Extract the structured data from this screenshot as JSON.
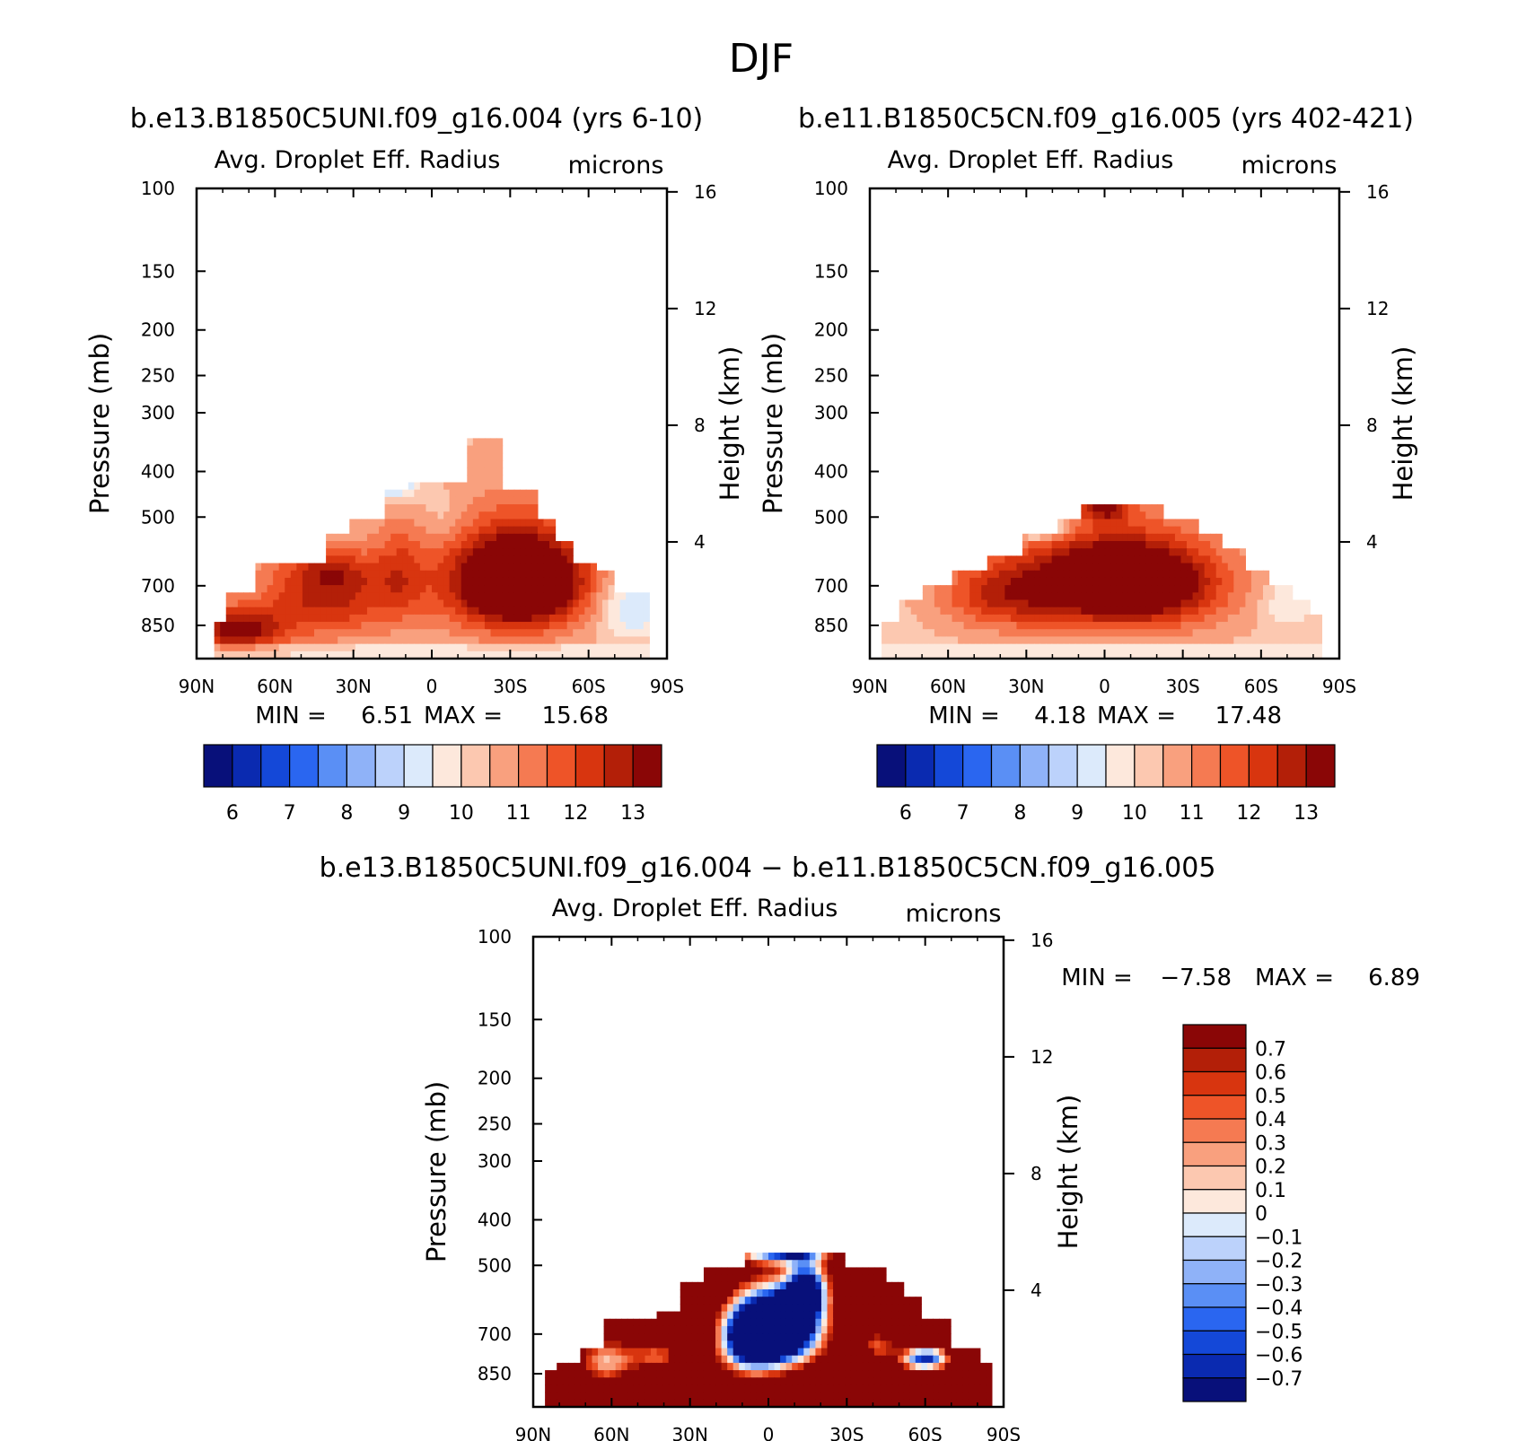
{
  "figure_title": "DJF",
  "colors": {
    "seq": [
      "#08107a",
      "#0a2ab0",
      "#1448d8",
      "#2a66f0",
      "#5a8ff5",
      "#8fb2f8",
      "#bcd2fb",
      "#dceafb",
      "#fde8dc",
      "#fcc8b0",
      "#f9a07e",
      "#f57a52",
      "#ee5428",
      "#d8350f",
      "#b31f08",
      "#8a0606"
    ],
    "diff": [
      "#8a0606",
      "#b31f08",
      "#d8350f",
      "#ee5428",
      "#f57a52",
      "#f9a07e",
      "#fcc8b0",
      "#fde8dc",
      "#dceafb",
      "#bcd2fb",
      "#8fb2f8",
      "#5a8ff5",
      "#2a66f0",
      "#1448d8",
      "#0a2ab0",
      "#08107a"
    ]
  },
  "panels": {
    "left": {
      "title": "b.e13.B1850C5UNI.f09_g16.004 (yrs 6-10)",
      "variable": "Avg. Droplet Eff. Radius",
      "units": "microns",
      "stats": {
        "min_label": "MIN =",
        "min": "6.51",
        "max_label": "MAX =",
        "max": "15.68"
      }
    },
    "right": {
      "title": "b.e11.B1850C5CN.f09_g16.005 (yrs 402-421)",
      "variable": "Avg. Droplet Eff. Radius",
      "units": "microns",
      "stats": {
        "min_label": "MIN =",
        "min": "4.18",
        "max_label": "MAX =",
        "max": "17.48"
      }
    },
    "diff": {
      "title": "b.e13.B1850C5UNI.f09_g16.004 − b.e11.B1850C5CN.f09_g16.005",
      "variable": "Avg. Droplet Eff. Radius",
      "units": "microns",
      "stats": {
        "min_label": "MIN =",
        "min": "−7.58",
        "max_label": "MAX =",
        "max": "6.89"
      }
    }
  },
  "chart_data": [
    {
      "type": "heatmap",
      "title": "b.e13.B1850C5UNI.f09_g16.004 (yrs 6-10)",
      "variable": "Avg. Droplet Eff. Radius",
      "units": "microns",
      "xlabel": "",
      "ylabel": "Pressure (mb)",
      "ylabel2": "Height (km)",
      "x_ticks": [
        "90N",
        "60N",
        "30N",
        "0",
        "30S",
        "60S",
        "90S"
      ],
      "x_values": [
        -90,
        -60,
        -30,
        0,
        30,
        60,
        90
      ],
      "xlim": [
        -90,
        90
      ],
      "y_ticks": [
        100,
        150,
        200,
        250,
        300,
        400,
        500,
        700,
        850
      ],
      "ylim": [
        100,
        1000
      ],
      "y2_ticks": [
        16,
        12,
        8,
        4
      ],
      "colorbar_labels": [
        "6",
        "7",
        "8",
        "9",
        "10",
        "11",
        "12",
        "13"
      ],
      "colorbar_levels": [
        5.5,
        6,
        6.5,
        7,
        7.5,
        8,
        8.5,
        9,
        9.5,
        10,
        10.5,
        11,
        11.5,
        12,
        12.5,
        13,
        13.5
      ],
      "background": 10.4,
      "top_profile": [
        [
          -83,
          850
        ],
        [
          -78,
          730
        ],
        [
          -68,
          620
        ],
        [
          -50,
          620
        ],
        [
          -40,
          550
        ],
        [
          -32,
          510
        ],
        [
          -18,
          440
        ],
        [
          -8,
          420
        ],
        [
          10,
          420
        ],
        [
          14,
          340
        ],
        [
          25,
          340
        ],
        [
          28,
          440
        ],
        [
          40,
          510
        ],
        [
          48,
          555
        ],
        [
          54,
          620
        ],
        [
          63,
          660
        ],
        [
          70,
          730
        ],
        [
          84,
          730
        ],
        [
          84,
          900
        ]
      ],
      "features": [
        {
          "lat": -75,
          "p": 870,
          "rx": 18,
          "ry": 90,
          "value": 3.0
        },
        {
          "lat": -40,
          "p": 740,
          "rx": 26,
          "ry": 150,
          "value": 2.3
        },
        {
          "lat": -38,
          "p": 650,
          "rx": 16,
          "ry": 60,
          "value": 1.0
        },
        {
          "lat": -12,
          "p": 650,
          "rx": 10,
          "ry": 160,
          "value": 1.2
        },
        {
          "lat": 32,
          "p": 680,
          "rx": 28,
          "ry": 180,
          "value": 4.2
        },
        {
          "lat": 35,
          "p": 700,
          "rx": 18,
          "ry": 110,
          "value": 1.6
        },
        {
          "lat": -15,
          "p": 420,
          "rx": 10,
          "ry": 40,
          "value": -2.0
        },
        {
          "lat": 76,
          "p": 780,
          "rx": 12,
          "ry": 120,
          "value": -1.6
        },
        {
          "lat": 5,
          "p": 500,
          "rx": 10,
          "ry": 60,
          "value": -0.5
        }
      ],
      "value_range": {
        "min": 6.51,
        "max": 15.68
      }
    },
    {
      "type": "heatmap",
      "title": "b.e11.B1850C5CN.f09_g16.005 (yrs 402-421)",
      "variable": "Avg. Droplet Eff. Radius",
      "units": "microns",
      "xlabel": "",
      "ylabel": "Pressure (mb)",
      "ylabel2": "Height (km)",
      "x_ticks": [
        "90N",
        "60N",
        "30N",
        "0",
        "30S",
        "60S",
        "90S"
      ],
      "x_values": [
        -90,
        -60,
        -30,
        0,
        30,
        60,
        90
      ],
      "xlim": [
        -90,
        90
      ],
      "y_ticks": [
        100,
        150,
        200,
        250,
        300,
        400,
        500,
        700,
        850
      ],
      "ylim": [
        100,
        1000
      ],
      "y2_ticks": [
        16,
        12,
        8,
        4
      ],
      "colorbar_labels": [
        "6",
        "7",
        "8",
        "9",
        "10",
        "11",
        "12",
        "13"
      ],
      "colorbar_levels": [
        5.5,
        6,
        6.5,
        7,
        7.5,
        8,
        8.5,
        9,
        9.5,
        10,
        10.5,
        11,
        11.5,
        12,
        12.5,
        13,
        13.5
      ],
      "background": 10.3,
      "top_profile": [
        [
          -85,
          850
        ],
        [
          -78,
          760
        ],
        [
          -70,
          700
        ],
        [
          -58,
          650
        ],
        [
          -45,
          600
        ],
        [
          -32,
          540
        ],
        [
          -18,
          500
        ],
        [
          -10,
          470
        ],
        [
          15,
          470
        ],
        [
          22,
          510
        ],
        [
          35,
          540
        ],
        [
          45,
          590
        ],
        [
          55,
          650
        ],
        [
          62,
          700
        ],
        [
          72,
          760
        ],
        [
          78,
          800
        ],
        [
          84,
          800
        ],
        [
          84,
          900
        ]
      ],
      "features": [
        {
          "lat": -40,
          "p": 730,
          "rx": 24,
          "ry": 130,
          "value": 1.9
        },
        {
          "lat": 8,
          "p": 690,
          "rx": 38,
          "ry": 170,
          "value": 3.7
        },
        {
          "lat": 12,
          "p": 695,
          "rx": 22,
          "ry": 100,
          "value": 1.6
        },
        {
          "lat": -5,
          "p": 640,
          "rx": 25,
          "ry": 100,
          "value": 0.6
        },
        {
          "lat": 0,
          "p": 480,
          "rx": 10,
          "ry": 30,
          "value": 2.2
        },
        {
          "lat": -25,
          "p": 520,
          "rx": 10,
          "ry": 35,
          "value": -2.5
        },
        {
          "lat": 70,
          "p": 760,
          "rx": 10,
          "ry": 90,
          "value": -1.0
        }
      ],
      "value_range": {
        "min": 4.18,
        "max": 17.48
      }
    },
    {
      "type": "heatmap",
      "title": "b.e13.B1850C5UNI.f09_g16.004 − b.e11.B1850C5CN.f09_g16.005",
      "variable": "Avg. Droplet Eff. Radius",
      "units": "microns",
      "xlabel": "",
      "ylabel": "Pressure (mb)",
      "ylabel2": "Height (km)",
      "x_ticks": [
        "90N",
        "60N",
        "30N",
        "0",
        "30S",
        "60S",
        "90S"
      ],
      "x_values": [
        -90,
        -60,
        -30,
        0,
        30,
        60,
        90
      ],
      "xlim": [
        -90,
        90
      ],
      "y_ticks": [
        100,
        150,
        200,
        250,
        300,
        400,
        500,
        700,
        850
      ],
      "ylim": [
        100,
        1000
      ],
      "y2_ticks": [
        16,
        12,
        8,
        4
      ],
      "colorbar_labels": [
        "0.7",
        "0.6",
        "0.5",
        "0.4",
        "0.3",
        "0.2",
        "0.1",
        "0",
        "−0.1",
        "−0.2",
        "−0.3",
        "−0.4",
        "−0.5",
        "−0.6",
        "−0.7"
      ],
      "colorbar_levels": [
        -0.8,
        -0.7,
        -0.6,
        -0.5,
        -0.4,
        -0.3,
        -0.2,
        -0.1,
        0,
        0.1,
        0.2,
        0.3,
        0.4,
        0.5,
        0.6,
        0.7,
        0.8
      ],
      "background": 1.5,
      "top_profile": [
        [
          -85,
          850
        ],
        [
          -82,
          800
        ],
        [
          -72,
          740
        ],
        [
          -62,
          660
        ],
        [
          -42,
          620
        ],
        [
          -33,
          540
        ],
        [
          -25,
          500
        ],
        [
          -10,
          470
        ],
        [
          28,
          470
        ],
        [
          30,
          500
        ],
        [
          40,
          500
        ],
        [
          46,
          540
        ],
        [
          52,
          590
        ],
        [
          58,
          660
        ],
        [
          70,
          740
        ],
        [
          80,
          800
        ],
        [
          85,
          800
        ],
        [
          85,
          900
        ]
      ],
      "features": [
        {
          "lat": 5,
          "p": 680,
          "rx": 16,
          "ry": 130,
          "value": -3.5
        },
        {
          "lat": 15,
          "p": 560,
          "rx": 8,
          "ry": 80,
          "value": -2.0
        },
        {
          "lat": -8,
          "p": 720,
          "rx": 12,
          "ry": 130,
          "value": -2.0
        },
        {
          "lat": 60,
          "p": 790,
          "rx": 10,
          "ry": 50,
          "value": -2.2
        },
        {
          "lat": -62,
          "p": 800,
          "rx": 12,
          "ry": 100,
          "value": -1.3
        },
        {
          "lat": -42,
          "p": 780,
          "rx": 10,
          "ry": 60,
          "value": -1.0
        },
        {
          "lat": 5,
          "p": 470,
          "rx": 18,
          "ry": 25,
          "value": -1.8
        },
        {
          "lat": 42,
          "p": 740,
          "rx": 7,
          "ry": 60,
          "value": -1.0
        }
      ],
      "value_range": {
        "min": -7.58,
        "max": 6.89
      }
    }
  ]
}
